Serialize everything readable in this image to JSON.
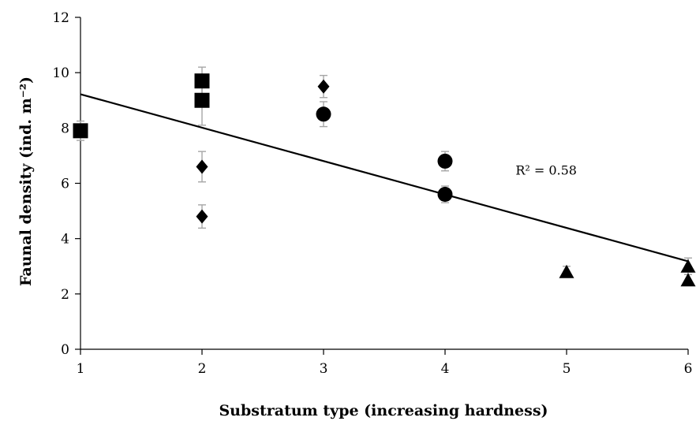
{
  "chart_data": {
    "type": "scatter",
    "title": "",
    "xlabel": "Substratum type (increasing hardness)",
    "ylabel": "Faunal density (ind. m⁻²)",
    "xlim": [
      1,
      6
    ],
    "ylim": [
      0,
      12
    ],
    "xticks": [
      "1",
      "2",
      "3",
      "4",
      "5",
      "6"
    ],
    "yticks": [
      "0",
      "2",
      "4",
      "6",
      "8",
      "10",
      "12"
    ],
    "grid": false,
    "legend": "none",
    "series": [
      {
        "marker": "square",
        "points": [
          {
            "x": 1,
            "y": 7.9,
            "err": 0.35
          },
          {
            "x": 2,
            "y": 9.7,
            "err": 0.5
          },
          {
            "x": 2,
            "y": 9.0,
            "err": 0.9
          }
        ]
      },
      {
        "marker": "diamond",
        "points": [
          {
            "x": 2,
            "y": 6.6,
            "err": 0.55
          },
          {
            "x": 2,
            "y": 4.8,
            "err": 0.42
          },
          {
            "x": 3,
            "y": 9.5,
            "err": 0.4
          }
        ]
      },
      {
        "marker": "circle",
        "points": [
          {
            "x": 3,
            "y": 8.5,
            "err": 0.45
          },
          {
            "x": 4,
            "y": 6.8,
            "err": 0.35
          },
          {
            "x": 4,
            "y": 5.6,
            "err": 0.3
          }
        ]
      },
      {
        "marker": "triangle",
        "points": [
          {
            "x": 5,
            "y": 2.8,
            "err": 0.2
          },
          {
            "x": 6,
            "y": 3.0,
            "err": 0.3
          },
          {
            "x": 6,
            "y": 2.5,
            "err": 0.2
          }
        ]
      }
    ],
    "trendline": {
      "x": [
        1,
        6
      ],
      "y": [
        9.22,
        3.18
      ],
      "label": "R² = 0.58",
      "label_x": 4.58,
      "label_y": 6.2
    },
    "colors": {
      "markers": "#000000",
      "error_bars": "#a6a6a6",
      "trendline": "#000000",
      "axis": "#000000"
    }
  }
}
